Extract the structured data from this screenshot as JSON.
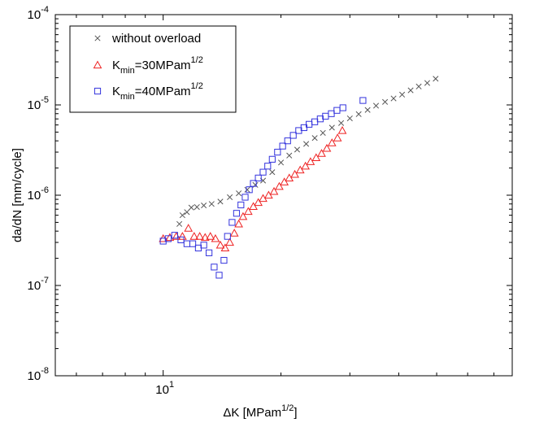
{
  "chart_data": {
    "type": "scatter",
    "title": "",
    "xlabel": "ΔK [MPam",
    "xlabel_sup": "1/2",
    "xlabel_close": "]",
    "ylabel": "da/dN [mm/cycle]",
    "xscale": "log",
    "yscale": "log",
    "xlim": [
      5.3,
      78
    ],
    "ylim": [
      1e-08,
      0.0001
    ],
    "grid": false,
    "legend_position": "top-left",
    "x_ticks": [
      {
        "value": 10,
        "base": "10",
        "exp": "1"
      }
    ],
    "y_ticks": [
      {
        "value": 1e-08,
        "base": "10",
        "exp": "-8"
      },
      {
        "value": 1e-07,
        "base": "10",
        "exp": "-7"
      },
      {
        "value": 1e-06,
        "base": "10",
        "exp": "-6"
      },
      {
        "value": 1e-05,
        "base": "10",
        "exp": "-5"
      },
      {
        "value": 0.0001,
        "base": "10",
        "exp": "-4"
      }
    ],
    "series": [
      {
        "name": "without overload",
        "label_main": "without overload",
        "label_sub": "",
        "label_tail": "",
        "label_sup": "",
        "marker": "x",
        "color": "#555555",
        "x": [
          11.0,
          11.2,
          11.5,
          11.8,
          12.2,
          12.7,
          13.3,
          14.0,
          14.8,
          15.6,
          16.4,
          17.2,
          18.0,
          19.0,
          20.0,
          21.0,
          22.0,
          23.2,
          24.4,
          25.6,
          27.0,
          28.5,
          30.0,
          31.6,
          33.3,
          35.0,
          36.9,
          38.8,
          40.8,
          42.9,
          45.0,
          47.3,
          49.7
        ],
        "y": [
          4.8e-07,
          6e-07,
          6.5e-07,
          7.3e-07,
          7.4e-07,
          7.7e-07,
          8e-07,
          8.5e-07,
          9.5e-07,
          1.05e-06,
          1.15e-06,
          1.3e-06,
          1.45e-06,
          1.8e-06,
          2.3e-06,
          2.75e-06,
          3.2e-06,
          3.7e-06,
          4.3e-06,
          4.9e-06,
          5.6e-06,
          6.3e-06,
          7.1e-06,
          7.9e-06,
          8.8e-06,
          9.8e-06,
          1.08e-05,
          1.18e-05,
          1.3e-05,
          1.45e-05,
          1.6e-05,
          1.75e-05,
          1.95e-05
        ]
      },
      {
        "name": "Kmin=30MPam1/2",
        "label_main": "K",
        "label_sub": "min",
        "label_tail": "=30MPam",
        "label_sup": "1/2",
        "marker": "triangle",
        "color": "#ee2222",
        "x": [
          10.0,
          10.4,
          10.8,
          11.2,
          11.6,
          12.0,
          12.4,
          12.8,
          13.2,
          13.6,
          14.0,
          14.4,
          14.8,
          15.2,
          15.6,
          16.0,
          16.5,
          17.0,
          17.5,
          18.0,
          18.6,
          19.2,
          19.8,
          20.4,
          21.0,
          21.7,
          22.4,
          23.1,
          23.8,
          24.6,
          25.4,
          26.2,
          27.0,
          27.9,
          28.7
        ],
        "y": [
          3.3e-07,
          3.4e-07,
          3.5e-07,
          3.5e-07,
          4.3e-07,
          3.5e-07,
          3.5e-07,
          3.4e-07,
          3.5e-07,
          3.3e-07,
          2.8e-07,
          2.6e-07,
          3e-07,
          3.8e-07,
          4.8e-07,
          5.8e-07,
          6.6e-07,
          7.5e-07,
          8.3e-07,
          9.2e-07,
          1e-06,
          1.1e-06,
          1.25e-06,
          1.4e-06,
          1.55e-06,
          1.7e-06,
          1.9e-06,
          2.1e-06,
          2.35e-06,
          2.6e-06,
          2.9e-06,
          3.3e-06,
          3.8e-06,
          4.3e-06,
          5.2e-06
        ]
      },
      {
        "name": "Kmin=40MPam1/2",
        "label_main": "K",
        "label_sub": "min",
        "label_tail": "=40MPam",
        "label_sup": "1/2",
        "marker": "square",
        "color": "#3333dd",
        "x": [
          10.0,
          10.3,
          10.7,
          11.1,
          11.5,
          11.9,
          12.3,
          12.7,
          13.1,
          13.5,
          13.9,
          14.3,
          14.6,
          15.0,
          15.4,
          15.8,
          16.2,
          16.6,
          17.0,
          17.5,
          18.0,
          18.5,
          19.0,
          19.6,
          20.2,
          20.8,
          21.5,
          22.2,
          22.9,
          23.6,
          24.4,
          25.2,
          26.0,
          26.9,
          27.8,
          28.8,
          32.4
        ],
        "y": [
          3.1e-07,
          3.3e-07,
          3.6e-07,
          3.2e-07,
          2.9e-07,
          2.9e-07,
          2.6e-07,
          2.8e-07,
          2.3e-07,
          1.6e-07,
          1.3e-07,
          1.9e-07,
          3.5e-07,
          5e-07,
          6.3e-07,
          7.8e-07,
          9.5e-07,
          1.15e-06,
          1.35e-06,
          1.55e-06,
          1.8e-06,
          2.1e-06,
          2.5e-06,
          3e-06,
          3.5e-06,
          4e-06,
          4.6e-06,
          5.2e-06,
          5.6e-06,
          6.1e-06,
          6.5e-06,
          7e-06,
          7.5e-06,
          8e-06,
          8.7e-06,
          9.3e-06,
          1.12e-05
        ]
      }
    ]
  }
}
